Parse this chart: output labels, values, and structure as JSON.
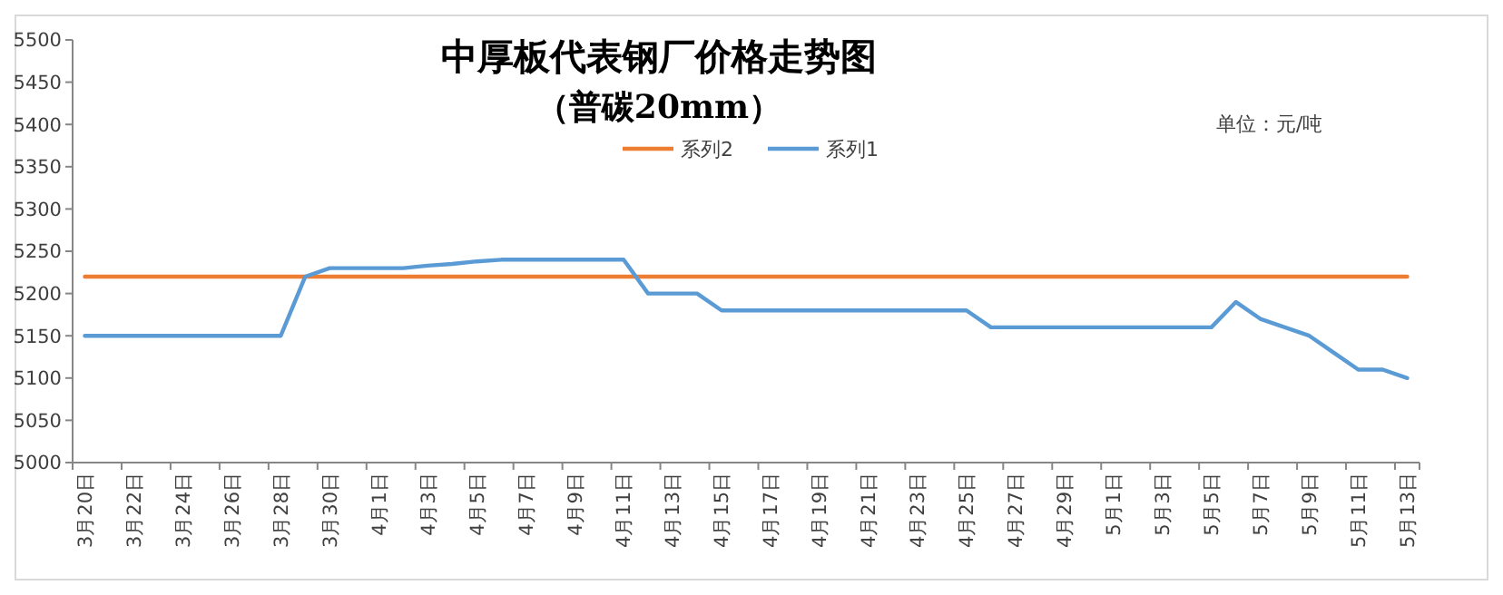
{
  "chart_data": {
    "type": "line",
    "title": "中厚板代表钢厂价格走势图",
    "subtitle": "（普碳20mm）",
    "annotations": [
      "单位：元/吨"
    ],
    "categories": [
      "3月20日",
      null,
      "3月22日",
      null,
      "3月24日",
      null,
      "3月26日",
      null,
      "3月28日",
      null,
      "3月30日",
      null,
      "4月1日",
      null,
      "4月3日",
      null,
      "4月5日",
      null,
      "4月7日",
      null,
      "4月9日",
      null,
      "4月11日",
      null,
      "4月13日",
      null,
      "4月15日",
      null,
      "4月17日",
      null,
      "4月19日",
      null,
      "4月21日",
      null,
      "4月23日",
      null,
      "4月25日",
      null,
      "4月27日",
      null,
      "4月29日",
      null,
      "5月1日",
      null,
      "5月3日",
      null,
      "5月5日",
      null,
      "5月7日",
      null,
      "5月9日",
      null,
      "5月11日",
      null,
      "5月13日"
    ],
    "series": [
      {
        "name": "系列2",
        "color": "#ed7d31",
        "values": [
          5220,
          5220,
          5220,
          5220,
          5220,
          5220,
          5220,
          5220,
          5220,
          5220,
          5220,
          5220,
          5220,
          5220,
          5220,
          5220,
          5220,
          5220,
          5220,
          5220,
          5220,
          5220,
          5220,
          5220,
          5220,
          5220,
          5220,
          5220,
          5220,
          5220,
          5220,
          5220,
          5220,
          5220,
          5220,
          5220,
          5220,
          5220,
          5220,
          5220,
          5220,
          5220,
          5220,
          5220,
          5220,
          5220,
          5220,
          5220,
          5220,
          5220,
          5220,
          5220,
          5220,
          5220,
          5220
        ]
      },
      {
        "name": "系列1",
        "color": "#5b9bd5",
        "values": [
          5150,
          5150,
          5150,
          5150,
          5150,
          5150,
          5150,
          5150,
          5150,
          5220,
          5230,
          5230,
          5230,
          5230,
          5233,
          5235,
          5238,
          5240,
          5240,
          5240,
          5240,
          5240,
          5240,
          5200,
          5200,
          5200,
          5180,
          5180,
          5180,
          5180,
          5180,
          5180,
          5180,
          5180,
          5180,
          5180,
          5180,
          5160,
          5160,
          5160,
          5160,
          5160,
          5160,
          5160,
          5160,
          5160,
          5160,
          5190,
          5170,
          5160,
          5150,
          5130,
          5110,
          5110,
          5100
        ]
      }
    ],
    "ylim": [
      5000,
      5500
    ],
    "yticks": [
      5000,
      5050,
      5100,
      5150,
      5200,
      5250,
      5300,
      5350,
      5400,
      5450,
      5500
    ],
    "grid": false,
    "legend": "top",
    "marker": "none",
    "line_style": "solid"
  }
}
